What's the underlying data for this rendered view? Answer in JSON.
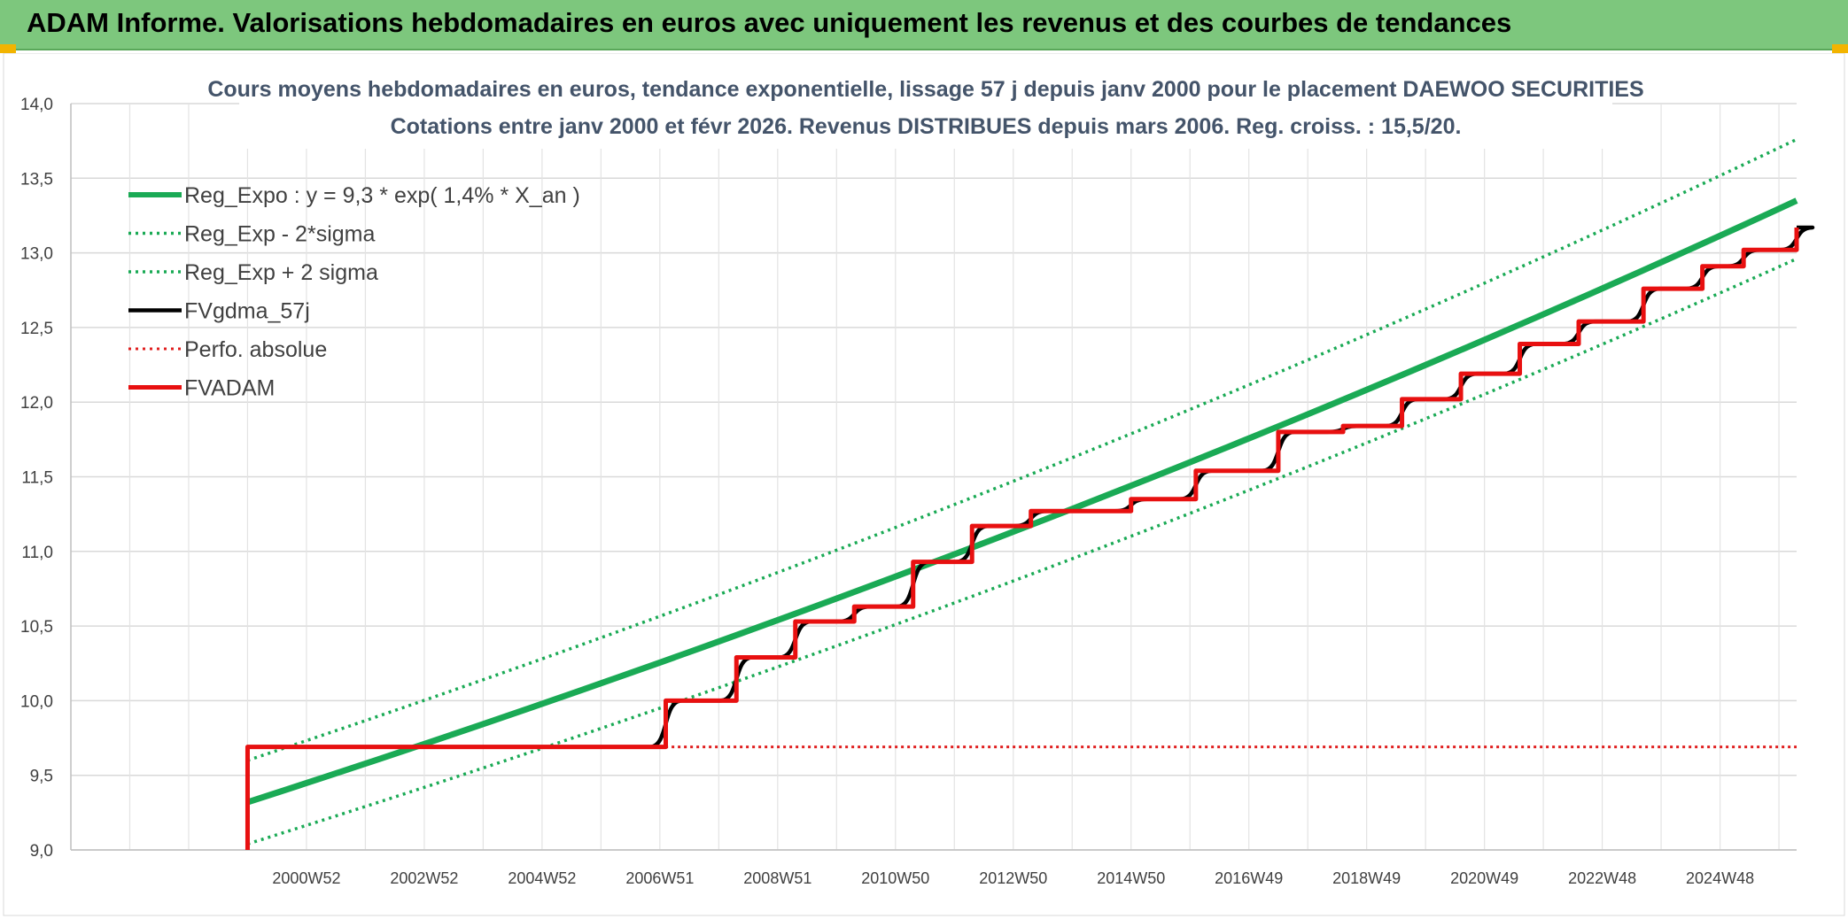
{
  "banner": {
    "title": "ADAM Informe. Valorisations hebdomadaires en euros avec uniquement les revenus et des courbes de tendances",
    "bg_color": "#7dc77d",
    "accent_color": "#f2b400"
  },
  "chart_data": {
    "type": "line",
    "title": "Cours moyens hebdomadaires en euros, tendance exponentielle, lissage 57 j depuis janv 2000 pour le placement DAEWOO SECURITIES",
    "subtitle": "Cotations entre janv 2000 et févr 2026. Revenus DISTRIBUES depuis mars 2006. Reg. croiss. : 15,5/20.",
    "xlabel": "",
    "ylabel": "",
    "ylim": [
      9.0,
      14.0
    ],
    "xlim": [
      1997.0,
      2026.3
    ],
    "yticks": [
      "9,0",
      "9,5",
      "10,0",
      "10,5",
      "11,0",
      "11,5",
      "12,0",
      "12,5",
      "13,0",
      "13,5",
      "14,0"
    ],
    "xticks": [
      {
        "x": 2001.0,
        "label": "2000W52"
      },
      {
        "x": 2003.0,
        "label": "2002W52"
      },
      {
        "x": 2005.0,
        "label": "2004W52"
      },
      {
        "x": 2007.0,
        "label": "2006W51"
      },
      {
        "x": 2009.0,
        "label": "2008W51"
      },
      {
        "x": 2011.0,
        "label": "2010W50"
      },
      {
        "x": 2013.0,
        "label": "2012W50"
      },
      {
        "x": 2015.0,
        "label": "2014W50"
      },
      {
        "x": 2017.0,
        "label": "2016W49"
      },
      {
        "x": 2019.0,
        "label": "2018W49"
      },
      {
        "x": 2021.0,
        "label": "2020W49"
      },
      {
        "x": 2023.0,
        "label": "2022W48"
      },
      {
        "x": 2025.0,
        "label": "2024W48"
      }
    ],
    "grid": true,
    "legend_position": "top-left",
    "series": [
      {
        "name": "Reg_Expo : y = 9,3 * exp( 1,4% *  X_an )",
        "color": "#1aaa55",
        "style": "solid",
        "width": 7,
        "x": [
          2000.0,
          2026.3
        ],
        "y": [
          9.32,
          13.35
        ]
      },
      {
        "name": "Reg_Exp - 2*sigma",
        "color": "#1aaa55",
        "style": "dotted",
        "width": 3.5,
        "x": [
          2000.0,
          2026.3
        ],
        "y": [
          9.04,
          12.96
        ]
      },
      {
        "name": "Reg_Exp + 2 sigma",
        "color": "#1aaa55",
        "style": "dotted",
        "width": 3.5,
        "x": [
          2000.0,
          2026.3
        ],
        "y": [
          9.6,
          13.76
        ]
      },
      {
        "name": "FVgdma_57j",
        "color": "#000000",
        "style": "smooth-steps",
        "width": 4.5,
        "x": [
          2000.0,
          2000.0,
          2006.1,
          2007.1,
          2008.3,
          2009.3,
          2010.3,
          2011.3,
          2012.3,
          2013.3,
          2015.0,
          2016.1,
          2017.5,
          2018.6,
          2019.6,
          2020.6,
          2021.6,
          2022.6,
          2023.7,
          2024.7,
          2025.4,
          2026.3
        ],
        "y": [
          9.0,
          9.69,
          9.69,
          10.0,
          10.29,
          10.53,
          10.63,
          10.93,
          11.17,
          11.27,
          11.35,
          11.54,
          11.8,
          11.84,
          12.02,
          12.19,
          12.39,
          12.54,
          12.76,
          12.91,
          13.02,
          13.17
        ]
      },
      {
        "name": "Perfo. absolue",
        "color": "#e02020",
        "style": "dotted",
        "width": 3,
        "x": [
          2000.0,
          2000.0,
          2026.3
        ],
        "y": [
          9.0,
          9.69,
          9.69
        ]
      },
      {
        "name": "FVADAM",
        "color": "#e81010",
        "style": "steps",
        "width": 5,
        "x": [
          2000.0,
          2000.0,
          2006.1,
          2007.1,
          2008.3,
          2009.3,
          2010.3,
          2011.3,
          2012.3,
          2013.3,
          2015.0,
          2016.1,
          2017.5,
          2018.6,
          2019.6,
          2020.6,
          2021.6,
          2022.6,
          2023.7,
          2024.7,
          2025.4,
          2026.3
        ],
        "y": [
          9.0,
          9.69,
          9.69,
          10.0,
          10.29,
          10.53,
          10.63,
          10.93,
          11.17,
          11.27,
          11.35,
          11.54,
          11.8,
          11.84,
          12.02,
          12.19,
          12.39,
          12.54,
          12.76,
          12.91,
          13.02,
          13.17
        ]
      }
    ]
  }
}
